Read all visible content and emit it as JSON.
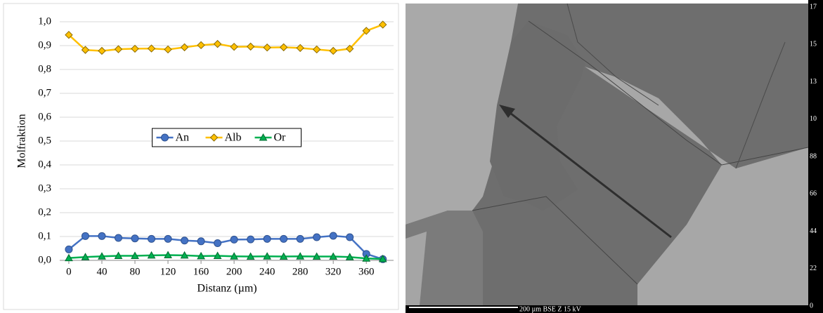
{
  "chart_data": {
    "type": "line",
    "x": [
      0,
      20,
      40,
      60,
      80,
      100,
      120,
      140,
      160,
      180,
      200,
      220,
      240,
      260,
      280,
      300,
      320,
      340,
      360,
      380
    ],
    "series": [
      {
        "name": "An",
        "color": "#4472c4",
        "marker": "circle",
        "values": [
          0.046,
          0.102,
          0.102,
          0.094,
          0.092,
          0.09,
          0.09,
          0.083,
          0.08,
          0.072,
          0.087,
          0.088,
          0.09,
          0.09,
          0.09,
          0.097,
          0.103,
          0.097,
          0.027,
          0.005
        ]
      },
      {
        "name": "Alb",
        "color": "#ffc000",
        "marker": "diamond",
        "values": [
          0.945,
          0.882,
          0.878,
          0.885,
          0.887,
          0.888,
          0.884,
          0.893,
          0.902,
          0.907,
          0.895,
          0.896,
          0.892,
          0.893,
          0.89,
          0.884,
          0.878,
          0.887,
          0.962,
          0.988
        ]
      },
      {
        "name": "Or",
        "color": "#00b050",
        "marker": "triangle",
        "values": [
          0.01,
          0.014,
          0.017,
          0.019,
          0.019,
          0.021,
          0.022,
          0.021,
          0.018,
          0.019,
          0.017,
          0.016,
          0.017,
          0.016,
          0.017,
          0.016,
          0.016,
          0.014,
          0.008,
          0.006
        ]
      }
    ],
    "xlabel": "Distanz (µm)",
    "ylabel": "Molfraktion",
    "xlim": [
      -11,
      393
    ],
    "ylim": [
      0,
      1
    ],
    "xticks": [
      0,
      40,
      80,
      120,
      160,
      200,
      240,
      280,
      320,
      360
    ],
    "yticks": [
      {
        "value": 0,
        "label": "0,0"
      },
      {
        "value": 0.1,
        "label": "0,1"
      },
      {
        "value": 0.2,
        "label": "0,2"
      },
      {
        "value": 0.3,
        "label": "0,3"
      },
      {
        "value": 0.4,
        "label": "0,4"
      },
      {
        "value": 0.5,
        "label": "0,5"
      },
      {
        "value": 0.6,
        "label": "0,6"
      },
      {
        "value": 0.7,
        "label": "0,7"
      },
      {
        "value": 0.8,
        "label": "0,8"
      },
      {
        "value": 0.9,
        "label": "0,9"
      },
      {
        "value": 1,
        "label": "1,0"
      }
    ],
    "grid": true,
    "legend_position": "center"
  },
  "image": {
    "scale_bar": "200 µm  BSE Z  15 kV",
    "gray_scale_labels": [
      "17",
      "15",
      "13",
      "10",
      "88",
      "66",
      "44",
      "22",
      "0"
    ]
  }
}
